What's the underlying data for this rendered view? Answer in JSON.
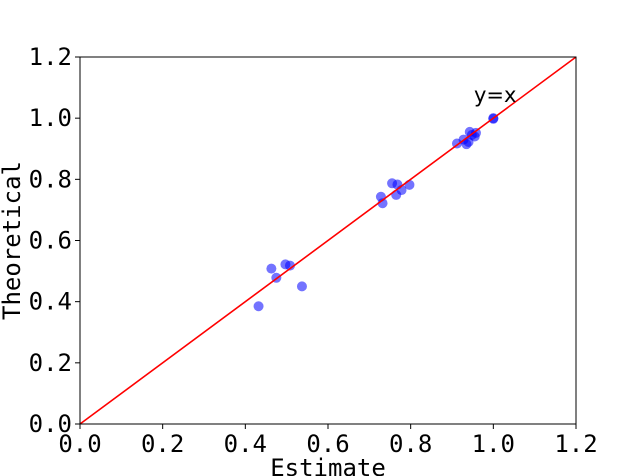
{
  "chart_data": {
    "type": "scatter",
    "xlabel": "Estimate",
    "ylabel": "Theoretical",
    "xlim": [
      0.0,
      1.2
    ],
    "ylim": [
      0.0,
      1.2
    ],
    "xticks": [
      "0.0",
      "0.2",
      "0.4",
      "0.6",
      "0.8",
      "1.0",
      "1.2"
    ],
    "yticks": [
      "0.0",
      "0.2",
      "0.4",
      "0.6",
      "0.8",
      "1.0",
      "1.2"
    ],
    "grid": false,
    "reference_line": {
      "label": "y=x",
      "color": "#ff0000",
      "from": [
        0.0,
        0.0
      ],
      "to": [
        1.2,
        1.2
      ]
    },
    "marker_color": "#0000ff",
    "marker_opacity": 0.55,
    "points": [
      [
        0.432,
        0.385
      ],
      [
        0.463,
        0.508
      ],
      [
        0.475,
        0.478
      ],
      [
        0.497,
        0.522
      ],
      [
        0.508,
        0.518
      ],
      [
        0.537,
        0.45
      ],
      [
        0.728,
        0.743
      ],
      [
        0.732,
        0.722
      ],
      [
        0.755,
        0.787
      ],
      [
        0.765,
        0.749
      ],
      [
        0.768,
        0.783
      ],
      [
        0.778,
        0.765
      ],
      [
        0.797,
        0.782
      ],
      [
        0.912,
        0.917
      ],
      [
        0.928,
        0.93
      ],
      [
        0.935,
        0.915
      ],
      [
        0.94,
        0.922
      ],
      [
        0.943,
        0.955
      ],
      [
        0.948,
        0.945
      ],
      [
        0.955,
        0.94
      ],
      [
        0.958,
        0.952
      ],
      [
        1.0,
        1.0
      ],
      [
        1.0,
        0.998
      ]
    ]
  }
}
